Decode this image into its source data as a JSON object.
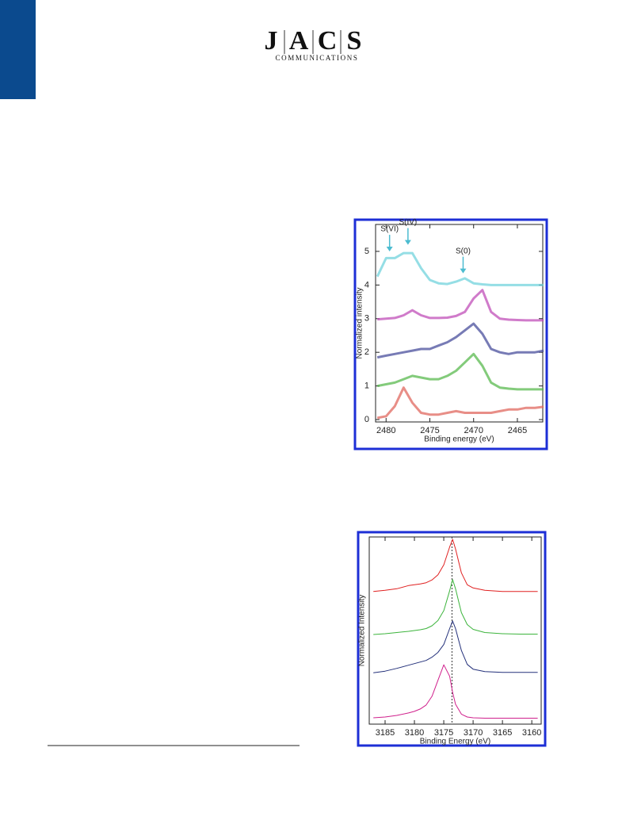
{
  "header": {
    "logo": [
      "J",
      "A",
      "C",
      "S"
    ],
    "subtitle": "COMMUNICATIONS"
  },
  "chart_data": [
    {
      "type": "line",
      "x_label": "Binding energy (eV)",
      "y_label": "Normalized intensity",
      "x": [
        2481,
        2480,
        2479,
        2478,
        2477,
        2476,
        2475,
        2474,
        2473,
        2472,
        2471,
        2470,
        2469,
        2468,
        2467,
        2466,
        2465,
        2464,
        2463,
        2462
      ],
      "xlim": [
        2481.2,
        2462.1
      ],
      "xticks": [
        2480,
        2475,
        2470,
        2465
      ],
      "ylim": [
        -0.07,
        5.8
      ],
      "yticks": [
        0,
        1,
        2,
        3,
        4,
        5
      ],
      "series": [
        {
          "color": "#72d3dc",
          "values": [
            4.25,
            4.8,
            4.8,
            4.95,
            4.95,
            4.5,
            4.15,
            4.05,
            4.03,
            4.1,
            4.2,
            4.05,
            4.02,
            4.0,
            4.0,
            4.0,
            4.0,
            4.0,
            4.0,
            4.0
          ]
        },
        {
          "color": "#c04fb8",
          "values": [
            2.98,
            3.0,
            3.02,
            3.1,
            3.25,
            3.1,
            3.02,
            3.02,
            3.03,
            3.08,
            3.2,
            3.6,
            3.85,
            3.2,
            3.0,
            2.97,
            2.96,
            2.95,
            2.95,
            2.95
          ]
        },
        {
          "color": "#4a4f9c",
          "values": [
            1.85,
            1.9,
            1.95,
            2.0,
            2.05,
            2.1,
            2.1,
            2.2,
            2.3,
            2.45,
            2.65,
            2.85,
            2.55,
            2.1,
            2.0,
            1.95,
            2.0,
            2.0,
            2.0,
            2.05
          ]
        },
        {
          "color": "#5ab94f",
          "values": [
            1.0,
            1.05,
            1.1,
            1.2,
            1.3,
            1.25,
            1.2,
            1.2,
            1.3,
            1.45,
            1.7,
            1.95,
            1.6,
            1.1,
            0.95,
            0.92,
            0.9,
            0.9,
            0.9,
            0.9
          ]
        },
        {
          "color": "#e0685f",
          "values": [
            0.05,
            0.1,
            0.4,
            0.95,
            0.5,
            0.2,
            0.15,
            0.15,
            0.2,
            0.25,
            0.2,
            0.2,
            0.2,
            0.2,
            0.25,
            0.3,
            0.3,
            0.35,
            0.35,
            0.38
          ]
        }
      ],
      "annotations": [
        {
          "text": "S(VI)",
          "x": 2479.6,
          "y": 4.95
        },
        {
          "text": "S(IV)",
          "x": 2477.5,
          "y": 5.15
        },
        {
          "text": "S(0)",
          "x": 2471.2,
          "y": 4.3
        }
      ]
    },
    {
      "type": "line",
      "x_label": "Binding Energy (eV)",
      "y_label": "Normalized Intensity",
      "x": [
        3187,
        3185,
        3183,
        3181,
        3180,
        3179,
        3178,
        3177,
        3176,
        3175,
        3174,
        3173.5,
        3173,
        3172,
        3171,
        3170,
        3168,
        3165,
        3162,
        3159
      ],
      "xlim": [
        3187.7,
        3158.4
      ],
      "xticks": [
        3185,
        3180,
        3175,
        3170,
        3165,
        3160
      ],
      "ylim": [
        0,
        4.7
      ],
      "reference_line": 3173.6,
      "series": [
        {
          "color": "#e02020",
          "values": [
            3.33,
            3.36,
            3.4,
            3.48,
            3.5,
            3.52,
            3.55,
            3.62,
            3.75,
            4.0,
            4.45,
            4.64,
            4.4,
            3.8,
            3.5,
            3.42,
            3.36,
            3.33,
            3.33,
            3.33
          ]
        },
        {
          "color": "#3cb43c",
          "values": [
            2.25,
            2.27,
            2.3,
            2.33,
            2.35,
            2.37,
            2.4,
            2.47,
            2.6,
            2.85,
            3.35,
            3.63,
            3.4,
            2.8,
            2.5,
            2.38,
            2.3,
            2.27,
            2.26,
            2.26
          ]
        },
        {
          "color": "#23307a",
          "values": [
            1.29,
            1.33,
            1.4,
            1.48,
            1.52,
            1.56,
            1.6,
            1.68,
            1.8,
            2.0,
            2.4,
            2.59,
            2.4,
            1.85,
            1.5,
            1.38,
            1.32,
            1.3,
            1.3,
            1.3
          ]
        },
        {
          "color": "#d0208c",
          "values": [
            0.16,
            0.18,
            0.22,
            0.28,
            0.32,
            0.38,
            0.48,
            0.7,
            1.1,
            1.49,
            1.2,
            0.8,
            0.5,
            0.25,
            0.18,
            0.16,
            0.15,
            0.15,
            0.15,
            0.15
          ]
        }
      ]
    }
  ]
}
